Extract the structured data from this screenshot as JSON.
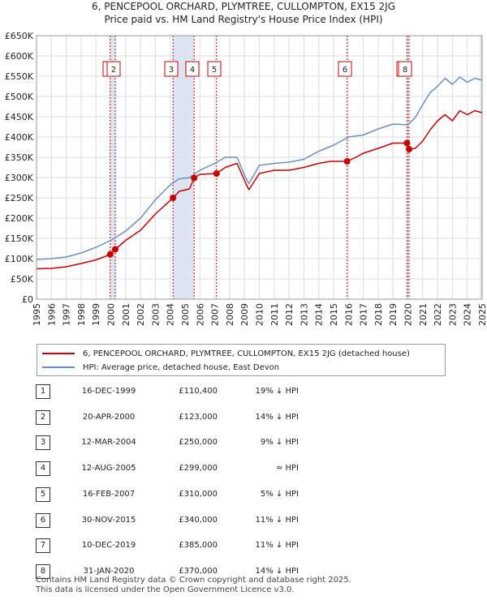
{
  "title_line1": "6, PENCEPOOL ORCHARD, PLYMTREE, CULLOMPTON, EX15 2JG",
  "title_line2": "Price paid vs. HM Land Registry's House Price Index (HPI)",
  "colors": {
    "property": "#cc0000",
    "hpi": "#6a8fc8",
    "band": "#dde5f4",
    "marker_line": "#cc0000"
  },
  "chart_data": {
    "type": "line",
    "xlim": [
      1995,
      2025
    ],
    "ylim": [
      0,
      650000
    ],
    "y_ticks": [
      "£0",
      "£50K",
      "£100K",
      "£150K",
      "£200K",
      "£250K",
      "£300K",
      "£350K",
      "£400K",
      "£450K",
      "£500K",
      "£550K",
      "£600K",
      "£650K"
    ],
    "x_ticks": [
      "1995",
      "1996",
      "1997",
      "1998",
      "1999",
      "2000",
      "2001",
      "2002",
      "2003",
      "2004",
      "2005",
      "2006",
      "2007",
      "2008",
      "2009",
      "2010",
      "2011",
      "2012",
      "2013",
      "2014",
      "2015",
      "2016",
      "2017",
      "2018",
      "2019",
      "2020",
      "2021",
      "2022",
      "2023",
      "2024",
      "2025"
    ],
    "series": [
      {
        "name": "6, PENCEPOOL ORCHARD, PLYMTREE, CULLOMPTON, EX15 2JG (detached house)",
        "x": [
          1995.0,
          1996.0,
          1997.0,
          1998.0,
          1999.0,
          1999.96,
          2000.3,
          2001.0,
          2002.0,
          2003.0,
          2004.19,
          2004.6,
          2005.3,
          2005.61,
          2006.0,
          2007.12,
          2007.7,
          2008.5,
          2009.1,
          2009.3,
          2010.0,
          2011.0,
          2012.0,
          2013.0,
          2014.0,
          2014.8,
          2015.91,
          2016.5,
          2017.0,
          2018.0,
          2019.0,
          2019.94,
          2020.08,
          2020.5,
          2021.0,
          2021.5,
          2022.0,
          2022.5,
          2023.0,
          2023.5,
          2024.0,
          2024.5,
          2025.0
        ],
        "y": [
          75000,
          76000,
          80000,
          88000,
          97000,
          110400,
          123000,
          145000,
          170000,
          210000,
          250000,
          266000,
          272000,
          299000,
          308000,
          310000,
          325000,
          335000,
          285000,
          270000,
          310000,
          318000,
          318000,
          325000,
          335000,
          340000,
          340000,
          350000,
          360000,
          372000,
          385000,
          385000,
          370000,
          372000,
          390000,
          418000,
          440000,
          455000,
          440000,
          465000,
          455000,
          465000,
          460000
        ]
      },
      {
        "name": "HPI: Average price, detached house, East Devon",
        "x": [
          1995.0,
          1996.0,
          1997.0,
          1998.0,
          1999.0,
          2000.0,
          2001.0,
          2002.0,
          2003.0,
          2004.0,
          2004.6,
          2005.3,
          2006.0,
          2007.0,
          2007.7,
          2008.5,
          2009.1,
          2009.3,
          2010.0,
          2011.0,
          2012.0,
          2013.0,
          2014.0,
          2015.0,
          2016.0,
          2017.0,
          2018.0,
          2019.0,
          2020.0,
          2020.5,
          2021.0,
          2021.5,
          2022.0,
          2022.5,
          2023.0,
          2023.5,
          2024.0,
          2024.5,
          2025.0
        ],
        "y": [
          98000,
          100000,
          104000,
          114000,
          128000,
          145000,
          168000,
          200000,
          245000,
          282000,
          297000,
          300000,
          318000,
          335000,
          350000,
          350000,
          298000,
          285000,
          330000,
          335000,
          338000,
          345000,
          365000,
          380000,
          400000,
          405000,
          420000,
          432000,
          430000,
          448000,
          480000,
          510000,
          525000,
          545000,
          530000,
          548000,
          535000,
          545000,
          540000
        ]
      }
    ],
    "markers": [
      {
        "label": "1",
        "x": 1999.96,
        "y": 110400
      },
      {
        "label": "2",
        "x": 2000.3,
        "y": 123000
      },
      {
        "label": "3",
        "x": 2004.19,
        "y": 250000
      },
      {
        "label": "4",
        "x": 2005.61,
        "y": 299000
      },
      {
        "label": "5",
        "x": 2007.12,
        "y": 310000
      },
      {
        "label": "6",
        "x": 2015.91,
        "y": 340000
      },
      {
        "label": "7",
        "x": 2019.94,
        "y": 385000
      },
      {
        "label": "8",
        "x": 2020.08,
        "y": 370000
      }
    ],
    "grid": true
  },
  "legend": {
    "property": "6, PENCEPOOL ORCHARD, PLYMTREE, CULLOMPTON, EX15 2JG (detached house)",
    "hpi": "HPI: Average price, detached house, East Devon"
  },
  "transactions": [
    {
      "num": "1",
      "date": "16-DEC-1999",
      "price": "£110,400",
      "rel": "19% ↓ HPI"
    },
    {
      "num": "2",
      "date": "20-APR-2000",
      "price": "£123,000",
      "rel": "14% ↓ HPI"
    },
    {
      "num": "3",
      "date": "12-MAR-2004",
      "price": "£250,000",
      "rel": "9% ↓ HPI"
    },
    {
      "num": "4",
      "date": "12-AUG-2005",
      "price": "£299,000",
      "rel": "≈ HPI"
    },
    {
      "num": "5",
      "date": "16-FEB-2007",
      "price": "£310,000",
      "rel": "5% ↓ HPI"
    },
    {
      "num": "6",
      "date": "30-NOV-2015",
      "price": "£340,000",
      "rel": "11% ↓ HPI"
    },
    {
      "num": "7",
      "date": "10-DEC-2019",
      "price": "£385,000",
      "rel": "11% ↓ HPI"
    },
    {
      "num": "8",
      "date": "31-JAN-2020",
      "price": "£370,000",
      "rel": "14% ↓ HPI"
    }
  ],
  "footer": {
    "line1": "Contains HM Land Registry data © Crown copyright and database right 2025.",
    "line2": "This data is licensed under the Open Government Licence v3.0."
  }
}
